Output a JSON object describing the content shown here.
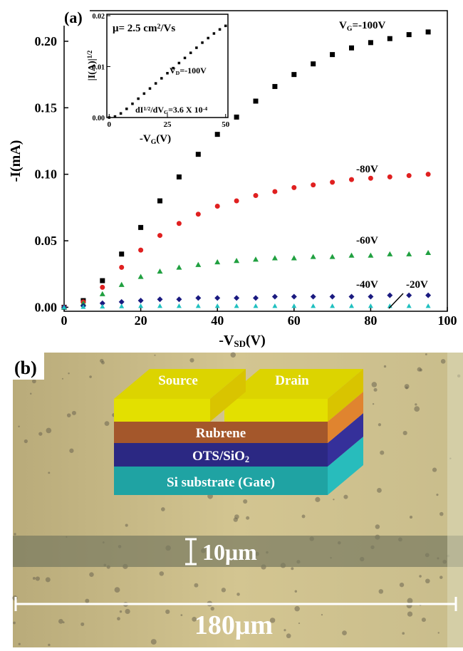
{
  "chart_data": [
    {
      "type": "scatter",
      "panel_label": "(a)",
      "x_label": [
        "-V",
        {
          "sub": "SD"
        },
        "(V)"
      ],
      "y_label": "-I(mA)",
      "xlim": [
        0,
        100
      ],
      "xticks": [
        0,
        20,
        40,
        60,
        80,
        100
      ],
      "ylim": [
        -0.003,
        0.223
      ],
      "yticks": [
        {
          "value": 0,
          "label": "0.00"
        },
        {
          "value": 0.05,
          "label": "0.05"
        },
        {
          "value": 0.1,
          "label": "0.10"
        },
        {
          "value": 0.15,
          "label": "0.15"
        },
        {
          "value": 0.2,
          "label": "0.20"
        }
      ],
      "x": [
        0,
        5,
        10,
        15,
        20,
        25,
        30,
        35,
        40,
        45,
        50,
        55,
        60,
        65,
        70,
        75,
        80,
        85,
        90,
        95
      ],
      "series": [
        {
          "name": [
            "V",
            {
              "sub": "G"
            },
            "=-100V"
          ],
          "color": "#000000",
          "marker": "square",
          "values": [
            0,
            0.005,
            0.02,
            0.04,
            0.06,
            0.08,
            0.098,
            0.115,
            0.13,
            0.143,
            0.155,
            0.166,
            0.175,
            0.183,
            0.19,
            0.195,
            0.199,
            0.202,
            0.205,
            0.207
          ]
        },
        {
          "name": "-80V",
          "color": "#e02020",
          "marker": "circle",
          "values": [
            0,
            0.004,
            0.015,
            0.03,
            0.043,
            0.054,
            0.063,
            0.07,
            0.076,
            0.08,
            0.084,
            0.087,
            0.09,
            0.092,
            0.094,
            0.096,
            0.097,
            0.098,
            0.099,
            0.1
          ]
        },
        {
          "name": "-60V",
          "color": "#20a040",
          "marker": "triangle",
          "values": [
            0,
            0.003,
            0.01,
            0.017,
            0.023,
            0.027,
            0.03,
            0.032,
            0.034,
            0.035,
            0.036,
            0.037,
            0.037,
            0.038,
            0.038,
            0.039,
            0.039,
            0.04,
            0.04,
            0.041
          ]
        },
        {
          "name": "-40V",
          "color": "#1a1a80",
          "marker": "diamond",
          "values": [
            0,
            0.001,
            0.003,
            0.004,
            0.005,
            0.006,
            0.006,
            0.007,
            0.007,
            0.007,
            0.007,
            0.008,
            0.008,
            0.008,
            0.008,
            0.008,
            0.008,
            0.009,
            0.009,
            0.009
          ]
        },
        {
          "name": "-20V",
          "color": "#20c0c0",
          "marker": "triangle",
          "values": [
            0,
            0.0003,
            0.0006,
            0.0008,
            0.001,
            0.001,
            0.001,
            0.001,
            0.001,
            0.001,
            0.001,
            0.001,
            0.001,
            0.001,
            0.001,
            0.001,
            0.001,
            0.001,
            0.001,
            0.001
          ]
        }
      ]
    },
    {
      "type": "scatter",
      "x_label": [
        "-V",
        {
          "sub": "G"
        },
        "(V)"
      ],
      "y_label": [
        "|I(A)|",
        {
          "sup": "1/2"
        }
      ],
      "annotations": [
        [
          "μ= 2.5 cm",
          {
            "sup": "2"
          },
          "/Vs"
        ],
        [
          "V",
          {
            "sub": "D"
          },
          "=-100V"
        ],
        [
          "dI",
          {
            "sup": "1/2"
          },
          "/dV",
          {
            "sub": "G"
          },
          "=3.6 X 10",
          {
            "sup": "-4"
          }
        ]
      ],
      "xlim": [
        -1,
        51
      ],
      "xticks": [
        0,
        25,
        50
      ],
      "ylim": [
        0,
        0.02
      ],
      "yticks": [
        {
          "value": 0,
          "label": "0.00"
        },
        {
          "value": 0.01,
          "label": "0.01"
        },
        {
          "value": 0.02,
          "label": "0.02"
        }
      ],
      "x": [
        0,
        2.5,
        5,
        7.5,
        10,
        12.5,
        15,
        17.5,
        20,
        22.5,
        25,
        27.5,
        30,
        32.5,
        35,
        37.5,
        40,
        42.5,
        45,
        47.5,
        50
      ],
      "series": [
        {
          "color": "#000000",
          "marker": "square",
          "values": [
            0,
            0.0002,
            0.0008,
            0.0017,
            0.0027,
            0.0037,
            0.0047,
            0.0057,
            0.0067,
            0.0077,
            0.0087,
            0.0097,
            0.0107,
            0.0117,
            0.0127,
            0.0137,
            0.0147,
            0.0156,
            0.0165,
            0.0173,
            0.018
          ]
        }
      ]
    }
  ],
  "panel_b": {
    "label": "(b)",
    "source": "Source",
    "drain": "Drain",
    "rubrene": "Rubrene",
    "ots": [
      "OTS/SiO",
      {
        "sub": "2"
      }
    ],
    "substrate": "Si substrate (Gate)",
    "scale_small": "10μm",
    "scale_large": "180μm"
  }
}
